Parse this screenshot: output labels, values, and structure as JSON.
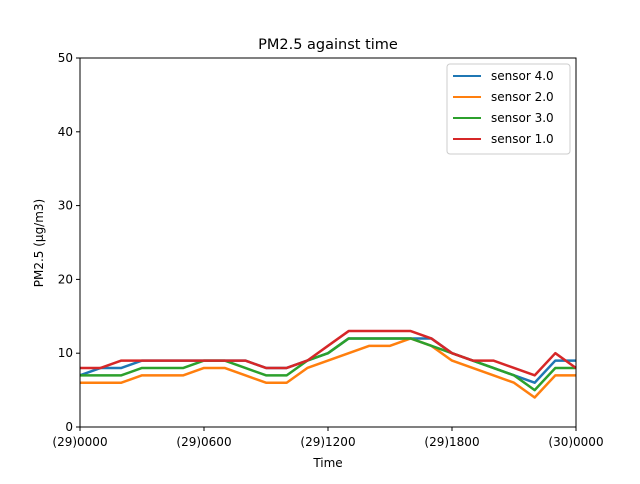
{
  "chart_data": {
    "type": "line",
    "title": "PM2.5 against  time",
    "xlabel": "Time",
    "ylabel": "PM2.5 (μg/m3)",
    "x_range_hours": [
      0,
      24
    ],
    "ylim": [
      0,
      50
    ],
    "yticks": [
      0,
      10,
      20,
      30,
      40,
      50
    ],
    "xticks": [
      {
        "hour": 0,
        "label": "(29)0000"
      },
      {
        "hour": 6,
        "label": "(29)0600"
      },
      {
        "hour": 12,
        "label": "(29)1200"
      },
      {
        "hour": 18,
        "label": "(29)1800"
      },
      {
        "hour": 24,
        "label": "(30)0000"
      }
    ],
    "grid": false,
    "legend_position": "top-right",
    "series": [
      {
        "name": "sensor 4.0",
        "color": "#1f77b4",
        "x": [
          0,
          1,
          2,
          3,
          4,
          5,
          6,
          7,
          8,
          9,
          10,
          11,
          12,
          13,
          14,
          15,
          16,
          17,
          18,
          19,
          20,
          21,
          22,
          23,
          24
        ],
        "y": [
          7,
          8,
          8,
          9,
          9,
          9,
          9,
          9,
          9,
          8,
          8,
          9,
          10,
          12,
          12,
          12,
          12,
          12,
          10,
          9,
          8,
          7,
          6,
          9,
          9
        ]
      },
      {
        "name": "sensor 2.0",
        "color": "#ff7f0e",
        "x": [
          0,
          1,
          2,
          3,
          4,
          5,
          6,
          7,
          8,
          9,
          10,
          11,
          12,
          13,
          14,
          15,
          16,
          17,
          18,
          19,
          20,
          21,
          22,
          23,
          24
        ],
        "y": [
          6,
          6,
          6,
          7,
          7,
          7,
          8,
          8,
          7,
          6,
          6,
          8,
          9,
          10,
          11,
          11,
          12,
          11,
          9,
          8,
          7,
          6,
          4,
          7,
          7
        ]
      },
      {
        "name": "sensor 3.0",
        "color": "#2ca02c",
        "x": [
          0,
          1,
          2,
          3,
          4,
          5,
          6,
          7,
          8,
          9,
          10,
          11,
          12,
          13,
          14,
          15,
          16,
          17,
          18,
          19,
          20,
          21,
          22,
          23,
          24
        ],
        "y": [
          7,
          7,
          7,
          8,
          8,
          8,
          9,
          9,
          8,
          7,
          7,
          9,
          10,
          12,
          12,
          12,
          12,
          11,
          10,
          9,
          8,
          7,
          5,
          8,
          8
        ]
      },
      {
        "name": "sensor 1.0",
        "color": "#d62728",
        "x": [
          0,
          1,
          2,
          3,
          4,
          5,
          6,
          7,
          8,
          9,
          10,
          11,
          12,
          13,
          14,
          15,
          16,
          17,
          18,
          19,
          20,
          21,
          22,
          23,
          24
        ],
        "y": [
          8,
          8,
          9,
          9,
          9,
          9,
          9,
          9,
          9,
          8,
          8,
          9,
          11,
          13,
          13,
          13,
          13,
          12,
          10,
          9,
          9,
          8,
          7,
          10,
          8
        ]
      }
    ]
  }
}
